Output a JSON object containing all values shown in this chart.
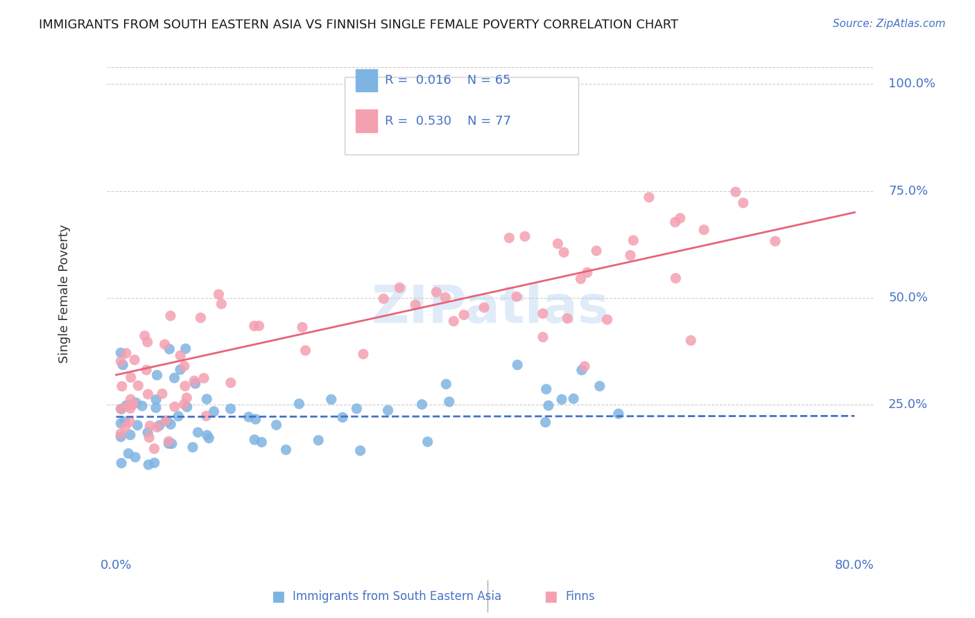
{
  "title": "IMMIGRANTS FROM SOUTH EASTERN ASIA VS FINNISH SINGLE FEMALE POVERTY CORRELATION CHART",
  "source": "Source: ZipAtlas.com",
  "ylabel": "Single Female Poverty",
  "watermark": "ZIPatlas",
  "blue_color": "#7EB4E2",
  "pink_color": "#F4A0B0",
  "blue_line_color": "#4472C4",
  "pink_line_color": "#E8637A",
  "axis_label_color": "#4472C4",
  "grid_color": "#cccccc",
  "blue_line_start_y": 0.222,
  "blue_line_end_y": 0.224,
  "pink_line_start_y": 0.32,
  "pink_line_end_y": 0.7,
  "xlim_min": -0.01,
  "xlim_max": 0.82,
  "ylim_min": -0.08,
  "ylim_max": 1.1
}
